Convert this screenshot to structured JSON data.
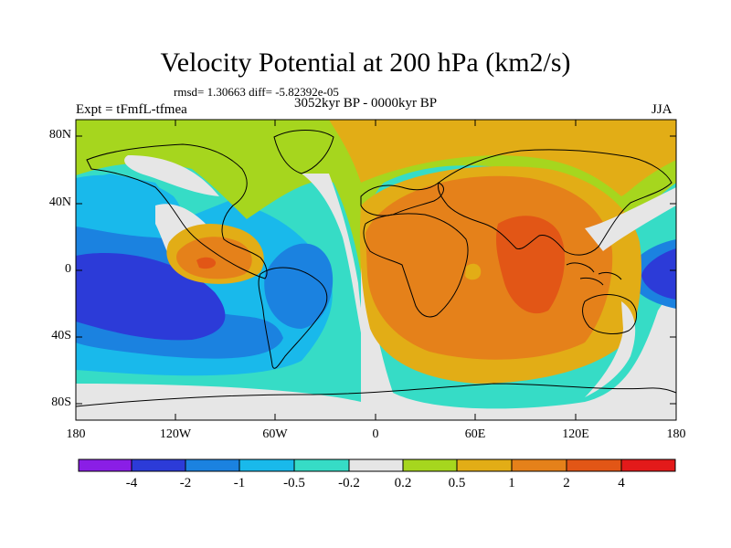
{
  "header": {
    "title": "Velocity Potential at 200 hPa (km2/s)",
    "stats": "rmsd= 1.30663 diff= -5.82392e-05",
    "experiment": "Expt = tFmfL-tfmea",
    "period": "3052kyr BP - 0000kyr BP",
    "season": "JJA"
  },
  "map": {
    "lat_ticks": [
      "80N",
      "40N",
      "0",
      "40S",
      "80S"
    ],
    "lon_ticks": [
      "180",
      "120W",
      "60W",
      "0",
      "60E",
      "120E",
      "180"
    ]
  },
  "colorbar": {
    "labels": [
      "-4",
      "-2",
      "-1",
      "-0.5",
      "-0.2",
      "0.2",
      "0.5",
      "1",
      "2",
      "4"
    ],
    "colors": [
      "#8a1ee6",
      "#2c3bd8",
      "#1b82e0",
      "#19b9eb",
      "#36dcc6",
      "#e6e6e6",
      "#a6d61e",
      "#e2ad16",
      "#e5811a",
      "#e25616",
      "#e31a1a"
    ]
  }
}
